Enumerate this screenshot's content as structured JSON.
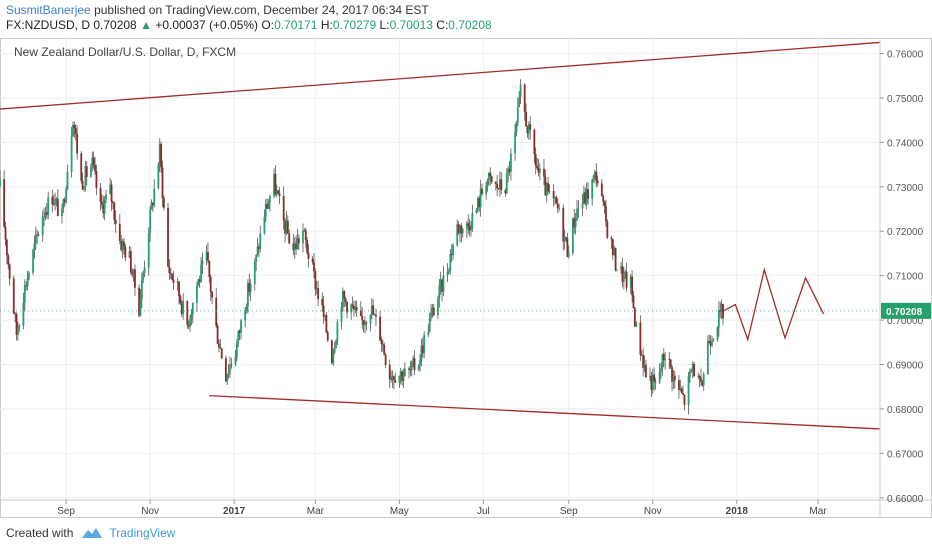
{
  "header": {
    "user": "SusmitBanerjee",
    "published": "published on TradingView.com, December 24, 2017 06:34 EST"
  },
  "symbol_line": {
    "symbol": "FX:NZDUSD, D",
    "last": "0.70208",
    "change": "+0.00037 (+0.05%)",
    "o_label": "O:",
    "o_value": "0.70171",
    "h_label": "H:",
    "h_value": "0.70279",
    "l_label": "L:",
    "l_value": "0.70013",
    "c_label": "C:",
    "c_value": "0.70208"
  },
  "footer": {
    "created_with": "Created with",
    "brand": "TradingView"
  },
  "colors": {
    "up": "#26a06a",
    "down": "#8b2a2a",
    "trendline": "#a52a2a",
    "price_badge": "#26a06a",
    "grid": "#eeeeee"
  },
  "chart_data": {
    "type": "candlestick",
    "title": "New Zealand Dollar/U.S. Dollar, D, FXCM",
    "current_price_label": "0.70208",
    "ylim": [
      0.6595,
      0.7635
    ],
    "y_ticks": [
      "0.76000",
      "0.75000",
      "0.74000",
      "0.73000",
      "0.72000",
      "0.71000",
      "0.70000",
      "0.69000",
      "0.68000",
      "0.67000",
      "0.66000"
    ],
    "x_ticks": [
      {
        "label": "Sep",
        "bold": false,
        "date": "2016-09-01"
      },
      {
        "label": "Nov",
        "bold": false,
        "date": "2016-11-01"
      },
      {
        "label": "2017",
        "bold": true,
        "date": "2017-01-01"
      },
      {
        "label": "Mar",
        "bold": false,
        "date": "2017-03-01"
      },
      {
        "label": "May",
        "bold": false,
        "date": "2017-05-01"
      },
      {
        "label": "Jul",
        "bold": false,
        "date": "2017-07-01"
      },
      {
        "label": "Sep",
        "bold": false,
        "date": "2017-09-01"
      },
      {
        "label": "Nov",
        "bold": false,
        "date": "2017-11-01"
      },
      {
        "label": "2018",
        "bold": true,
        "date": "2018-01-01"
      },
      {
        "label": "Mar",
        "bold": false,
        "date": "2018-03-01"
      }
    ],
    "xlim": [
      "2016-07-15",
      "2018-04-15"
    ],
    "path_anchors": [
      [
        "2016-07-15",
        0.73
      ],
      [
        "2016-07-21",
        0.713
      ],
      [
        "2016-07-27",
        0.697
      ],
      [
        "2016-08-01",
        0.706
      ],
      [
        "2016-08-08",
        0.715
      ],
      [
        "2016-08-15",
        0.724
      ],
      [
        "2016-08-22",
        0.728
      ],
      [
        "2016-08-29",
        0.723
      ],
      [
        "2016-09-06",
        0.746
      ],
      [
        "2016-09-12",
        0.731
      ],
      [
        "2016-09-20",
        0.735
      ],
      [
        "2016-09-26",
        0.725
      ],
      [
        "2016-10-03",
        0.729
      ],
      [
        "2016-10-10",
        0.718
      ],
      [
        "2016-10-17",
        0.714
      ],
      [
        "2016-10-24",
        0.703
      ],
      [
        "2016-10-31",
        0.721
      ],
      [
        "2016-11-08",
        0.738
      ],
      [
        "2016-11-14",
        0.712
      ],
      [
        "2016-11-21",
        0.707
      ],
      [
        "2016-11-28",
        0.699
      ],
      [
        "2016-12-05",
        0.708
      ],
      [
        "2016-12-12",
        0.714
      ],
      [
        "2016-12-19",
        0.698
      ],
      [
        "2016-12-26",
        0.688
      ],
      [
        "2017-01-02",
        0.693
      ],
      [
        "2017-01-09",
        0.704
      ],
      [
        "2017-01-16",
        0.712
      ],
      [
        "2017-01-23",
        0.724
      ],
      [
        "2017-01-30",
        0.731
      ],
      [
        "2017-02-06",
        0.722
      ],
      [
        "2017-02-13",
        0.716
      ],
      [
        "2017-02-20",
        0.72
      ],
      [
        "2017-02-27",
        0.711
      ],
      [
        "2017-03-06",
        0.702
      ],
      [
        "2017-03-13",
        0.692
      ],
      [
        "2017-03-20",
        0.705
      ],
      [
        "2017-03-27",
        0.703
      ],
      [
        "2017-04-03",
        0.699
      ],
      [
        "2017-04-10",
        0.703
      ],
      [
        "2017-04-17",
        0.697
      ],
      [
        "2017-04-24",
        0.688
      ],
      [
        "2017-05-01",
        0.688
      ],
      [
        "2017-05-08",
        0.688
      ],
      [
        "2017-05-15",
        0.691
      ],
      [
        "2017-05-22",
        0.699
      ],
      [
        "2017-05-29",
        0.705
      ],
      [
        "2017-06-05",
        0.712
      ],
      [
        "2017-06-12",
        0.721
      ],
      [
        "2017-06-19",
        0.721
      ],
      [
        "2017-06-26",
        0.725
      ],
      [
        "2017-07-03",
        0.732
      ],
      [
        "2017-07-10",
        0.73
      ],
      [
        "2017-07-17",
        0.73
      ],
      [
        "2017-07-24",
        0.741
      ],
      [
        "2017-07-28",
        0.751
      ],
      [
        "2017-08-03",
        0.742
      ],
      [
        "2017-08-10",
        0.733
      ],
      [
        "2017-08-17",
        0.728
      ],
      [
        "2017-08-24",
        0.725
      ],
      [
        "2017-08-31",
        0.716
      ],
      [
        "2017-09-07",
        0.725
      ],
      [
        "2017-09-14",
        0.728
      ],
      [
        "2017-09-21",
        0.733
      ],
      [
        "2017-09-28",
        0.722
      ],
      [
        "2017-10-05",
        0.713
      ],
      [
        "2017-10-12",
        0.709
      ],
      [
        "2017-10-16",
        0.708
      ],
      [
        "2017-10-20",
        0.698
      ],
      [
        "2017-10-27",
        0.688
      ],
      [
        "2017-11-03",
        0.685
      ],
      [
        "2017-11-10",
        0.693
      ],
      [
        "2017-11-17",
        0.686
      ],
      [
        "2017-11-24",
        0.682
      ],
      [
        "2017-11-30",
        0.69
      ],
      [
        "2017-12-06",
        0.684
      ],
      [
        "2017-12-11",
        0.695
      ],
      [
        "2017-12-18",
        0.7
      ],
      [
        "2017-12-22",
        0.702
      ]
    ],
    "trendlines": [
      {
        "name": "upper-channel",
        "points": [
          [
            "2016-07-15",
            0.7475
          ],
          [
            "2018-04-15",
            0.7625
          ]
        ]
      },
      {
        "name": "lower-channel",
        "points": [
          [
            "2016-12-14",
            0.683
          ],
          [
            "2018-04-15",
            0.6755
          ]
        ]
      }
    ],
    "projection": [
      [
        "2017-12-22",
        0.702
      ],
      [
        "2017-12-31",
        0.7035
      ],
      [
        "2018-01-09",
        0.6956
      ],
      [
        "2018-01-21",
        0.7113
      ],
      [
        "2018-02-05",
        0.696
      ],
      [
        "2018-02-20",
        0.7095
      ],
      [
        "2018-03-05",
        0.7014
      ]
    ]
  }
}
